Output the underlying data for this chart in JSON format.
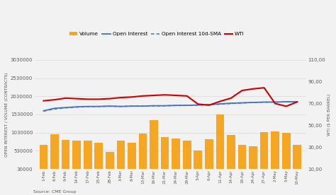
{
  "source_text": "Source: CME Group",
  "legend_labels": [
    "Volume",
    "Open Interest",
    "Open Interest 10d-SMA",
    "WTI"
  ],
  "ylabel_left": "OPEN INTEREST / VOLUME (CONTRACTS)",
  "ylabel_right": "WTI ($ PER BARREL)",
  "ylim_left": [
    30000,
    3030000
  ],
  "ylim_right": [
    10.0,
    110.0
  ],
  "yticks_left": [
    30000,
    530000,
    1030000,
    1530000,
    2030000,
    2530000,
    3030000
  ],
  "yticks_right": [
    10.0,
    30.0,
    50.0,
    70.0,
    90.0,
    110.0
  ],
  "xtick_labels": [
    "1-Feb",
    "6-Feb",
    "9-Feb",
    "14-Feb",
    "17-Feb",
    "23-Feb",
    "28-Feb",
    "3-Mar",
    "8-Mar",
    "13-Mar",
    "16-Mar",
    "21-Mar",
    "24-Mar",
    "29-Mar",
    "3-Apr",
    "6-Apr",
    "11-Apr",
    "14-Apr",
    "19-Apr",
    "24-Apr",
    "27-Apr",
    "2-May",
    "5-May",
    "10-May"
  ],
  "volume": [
    700000,
    980000,
    820000,
    800000,
    800000,
    750000,
    500000,
    800000,
    750000,
    1000000,
    1380000,
    900000,
    870000,
    800000,
    530000,
    850000,
    1530000,
    960000,
    700000,
    650000,
    1040000,
    1070000,
    1030000,
    700000
  ],
  "open_interest": [
    1630000,
    1700000,
    1720000,
    1740000,
    1750000,
    1750000,
    1760000,
    1750000,
    1760000,
    1760000,
    1770000,
    1770000,
    1780000,
    1780000,
    1790000,
    1800000,
    1820000,
    1840000,
    1850000,
    1860000,
    1870000,
    1870000,
    1880000,
    1880000
  ],
  "open_interest_sma": [
    1620000,
    1680000,
    1710000,
    1730000,
    1745000,
    1748000,
    1755000,
    1752000,
    1758000,
    1760000,
    1765000,
    1768000,
    1775000,
    1778000,
    1785000,
    1795000,
    1810000,
    1830000,
    1845000,
    1858000,
    1868000,
    1870000,
    1877000,
    1879000
  ],
  "wti": [
    72.5,
    73.5,
    75.0,
    74.5,
    74.0,
    74.0,
    74.5,
    75.5,
    76.0,
    77.0,
    77.5,
    78.0,
    77.5,
    77.0,
    69.5,
    68.5,
    72.0,
    75.0,
    82.0,
    83.5,
    84.5,
    70.0,
    67.5,
    71.5
  ],
  "volume_color": "#f5a623",
  "open_interest_color": "#4472c4",
  "open_interest_sma_color": "#4472c4",
  "wti_color": "#cc0000",
  "background_color": "#f2f2f2",
  "grid_color": "#d9d9d9",
  "text_color": "#595959"
}
